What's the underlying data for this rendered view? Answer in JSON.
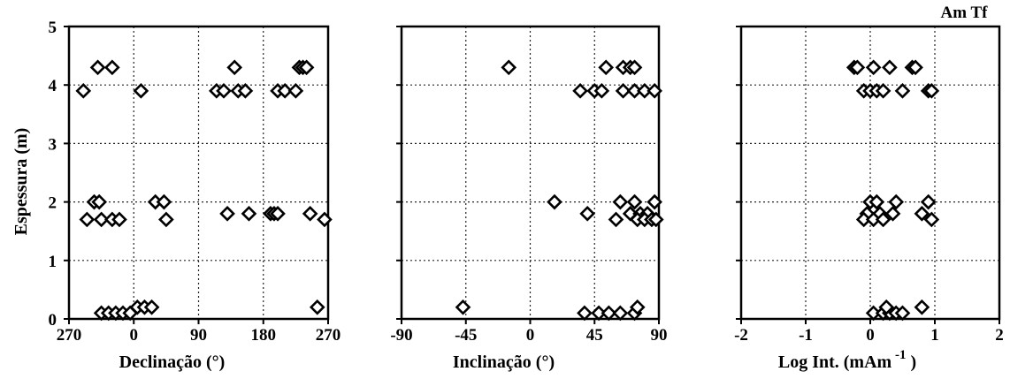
{
  "annotation": "Am Tf",
  "chart_data": [
    {
      "type": "scatter",
      "xlabel": "Declinação (°)",
      "ylabel": "Espessura (m)",
      "x_ticks": [
        "270",
        "0",
        "90",
        "180",
        "270"
      ],
      "x_tick_values": [
        -90,
        0,
        90,
        180,
        270
      ],
      "y_ticks": [
        "0",
        "1",
        "2",
        "3",
        "4",
        "5"
      ],
      "xlim": [
        -90,
        270
      ],
      "ylim": [
        0,
        5
      ],
      "grid": true,
      "points": [
        {
          "x": -70,
          "y": 3.9
        },
        {
          "x": -50,
          "y": 4.3
        },
        {
          "x": -30,
          "y": 4.3
        },
        {
          "x": 10,
          "y": 3.9
        },
        {
          "x": 115,
          "y": 3.9
        },
        {
          "x": 125,
          "y": 3.9
        },
        {
          "x": 140,
          "y": 4.3
        },
        {
          "x": 145,
          "y": 3.9
        },
        {
          "x": 155,
          "y": 3.9
        },
        {
          "x": 200,
          "y": 3.9
        },
        {
          "x": 210,
          "y": 3.9
        },
        {
          "x": 225,
          "y": 3.9
        },
        {
          "x": 230,
          "y": 4.3
        },
        {
          "x": 235,
          "y": 4.3
        },
        {
          "x": 240,
          "y": 4.3
        },
        {
          "x": -55,
          "y": 2.0
        },
        {
          "x": -48,
          "y": 2.0
        },
        {
          "x": 30,
          "y": 2.0
        },
        {
          "x": 42,
          "y": 2.0
        },
        {
          "x": -65,
          "y": 1.7
        },
        {
          "x": -45,
          "y": 1.7
        },
        {
          "x": -30,
          "y": 1.7
        },
        {
          "x": -20,
          "y": 1.7
        },
        {
          "x": 45,
          "y": 1.7
        },
        {
          "x": 130,
          "y": 1.8
        },
        {
          "x": 160,
          "y": 1.8
        },
        {
          "x": 190,
          "y": 1.8
        },
        {
          "x": 195,
          "y": 1.8
        },
        {
          "x": 200,
          "y": 1.8
        },
        {
          "x": 245,
          "y": 1.8
        },
        {
          "x": 265,
          "y": 1.7
        },
        {
          "x": -45,
          "y": 0.1
        },
        {
          "x": -35,
          "y": 0.1
        },
        {
          "x": -25,
          "y": 0.1
        },
        {
          "x": -15,
          "y": 0.1
        },
        {
          "x": -5,
          "y": 0.1
        },
        {
          "x": 5,
          "y": 0.2
        },
        {
          "x": 15,
          "y": 0.2
        },
        {
          "x": 25,
          "y": 0.2
        },
        {
          "x": 255,
          "y": 0.2
        }
      ]
    },
    {
      "type": "scatter",
      "xlabel": "Inclinação (°)",
      "ylabel": "",
      "x_ticks": [
        "-90",
        "-45",
        "0",
        "45",
        "90"
      ],
      "x_tick_values": [
        -90,
        -45,
        0,
        45,
        90
      ],
      "y_ticks": [],
      "xlim": [
        -90,
        90
      ],
      "ylim": [
        0,
        5
      ],
      "grid": true,
      "points": [
        {
          "x": -15,
          "y": 4.3
        },
        {
          "x": 53,
          "y": 4.3
        },
        {
          "x": 65,
          "y": 4.3
        },
        {
          "x": 70,
          "y": 4.3
        },
        {
          "x": 73,
          "y": 4.3
        },
        {
          "x": 35,
          "y": 3.9
        },
        {
          "x": 45,
          "y": 3.9
        },
        {
          "x": 50,
          "y": 3.9
        },
        {
          "x": 65,
          "y": 3.9
        },
        {
          "x": 73,
          "y": 3.9
        },
        {
          "x": 80,
          "y": 3.9
        },
        {
          "x": 87,
          "y": 3.9
        },
        {
          "x": 17,
          "y": 2.0
        },
        {
          "x": 63,
          "y": 2.0
        },
        {
          "x": 73,
          "y": 2.0
        },
        {
          "x": 87,
          "y": 2.0
        },
        {
          "x": 40,
          "y": 1.8
        },
        {
          "x": 70,
          "y": 1.8
        },
        {
          "x": 77,
          "y": 1.8
        },
        {
          "x": 82,
          "y": 1.8
        },
        {
          "x": 60,
          "y": 1.7
        },
        {
          "x": 75,
          "y": 1.7
        },
        {
          "x": 80,
          "y": 1.7
        },
        {
          "x": 85,
          "y": 1.7
        },
        {
          "x": 88,
          "y": 1.7
        },
        {
          "x": -47,
          "y": 0.2
        },
        {
          "x": 38,
          "y": 0.1
        },
        {
          "x": 48,
          "y": 0.1
        },
        {
          "x": 55,
          "y": 0.1
        },
        {
          "x": 63,
          "y": 0.1
        },
        {
          "x": 73,
          "y": 0.1
        },
        {
          "x": 75,
          "y": 0.2
        }
      ]
    },
    {
      "type": "scatter",
      "xlabel": "Log  Int.  (mAm",
      "xlabel_sup": "-1",
      "xlabel_end": ")",
      "ylabel": "",
      "x_ticks": [
        "-2",
        "-1",
        "0",
        "1",
        "2"
      ],
      "x_tick_values": [
        -2,
        -1,
        0,
        1,
        2
      ],
      "y_ticks": [],
      "xlim": [
        -2,
        2
      ],
      "ylim": [
        0,
        5
      ],
      "grid": true,
      "points": [
        {
          "x": -0.25,
          "y": 4.3
        },
        {
          "x": -0.2,
          "y": 4.3
        },
        {
          "x": 0.05,
          "y": 4.3
        },
        {
          "x": 0.3,
          "y": 4.3
        },
        {
          "x": 0.65,
          "y": 4.3
        },
        {
          "x": 0.7,
          "y": 4.3
        },
        {
          "x": -0.1,
          "y": 3.9
        },
        {
          "x": 0.0,
          "y": 3.9
        },
        {
          "x": 0.1,
          "y": 3.9
        },
        {
          "x": 0.2,
          "y": 3.9
        },
        {
          "x": 0.5,
          "y": 3.9
        },
        {
          "x": 0.9,
          "y": 3.9
        },
        {
          "x": 0.95,
          "y": 3.9
        },
        {
          "x": 0.0,
          "y": 2.0
        },
        {
          "x": 0.1,
          "y": 2.0
        },
        {
          "x": 0.4,
          "y": 2.0
        },
        {
          "x": 0.9,
          "y": 2.0
        },
        {
          "x": -0.05,
          "y": 1.8
        },
        {
          "x": 0.15,
          "y": 1.8
        },
        {
          "x": 0.35,
          "y": 1.8
        },
        {
          "x": 0.8,
          "y": 1.8
        },
        {
          "x": -0.1,
          "y": 1.7
        },
        {
          "x": 0.05,
          "y": 1.7
        },
        {
          "x": 0.2,
          "y": 1.7
        },
        {
          "x": 0.95,
          "y": 1.7
        },
        {
          "x": 0.05,
          "y": 0.1
        },
        {
          "x": 0.2,
          "y": 0.1
        },
        {
          "x": 0.3,
          "y": 0.1
        },
        {
          "x": 0.4,
          "y": 0.1
        },
        {
          "x": 0.5,
          "y": 0.1
        },
        {
          "x": 0.25,
          "y": 0.2
        },
        {
          "x": 0.8,
          "y": 0.2
        }
      ]
    }
  ]
}
